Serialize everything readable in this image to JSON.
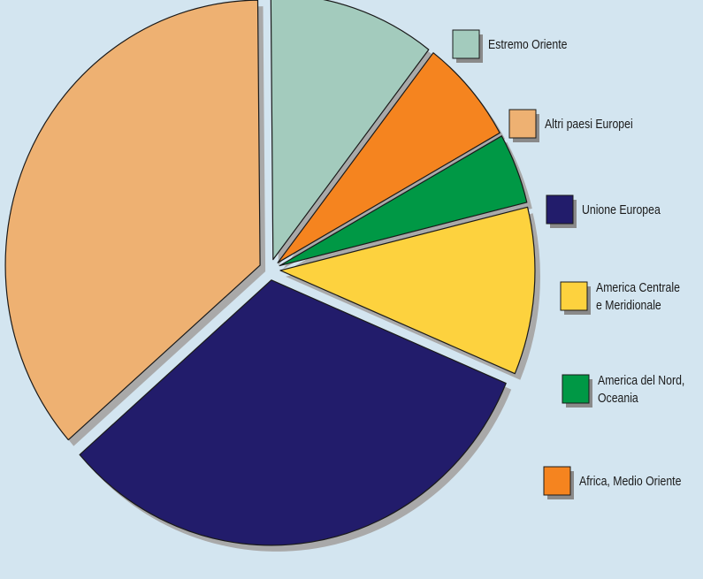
{
  "chart_data": {
    "type": "pie",
    "exploded": true,
    "shadow": true,
    "slices": [
      {
        "label": "Estremo Oriente",
        "lines": [
          "Estremo Oriente"
        ],
        "value": 10.6,
        "color": "#a3cbbd"
      },
      {
        "label": "Africa, Medio Oriente",
        "lines": [
          "Africa, Medio Oriente"
        ],
        "value": 6.4,
        "color": "#f5841f"
      },
      {
        "label": "America del Nord, Oceania",
        "lines": [
          "America del Nord,",
          "Oceania"
        ],
        "value": 4.3,
        "color": "#009845"
      },
      {
        "label": "America Centrale e Meridionale",
        "lines": [
          "America Centrale",
          "e Meridionale"
        ],
        "value": 10.2,
        "color": "#fdd23e"
      },
      {
        "label": "Unione Europea",
        "lines": [
          "Unione Europea"
        ],
        "value": 32.2,
        "color": "#221c6b"
      },
      {
        "label": "Altri paesi Europei",
        "lines": [
          "Altri paesi Europei"
        ],
        "value": 36.3,
        "color": "#eeb172"
      }
    ],
    "legend": [
      {
        "key": "Estremo Oriente"
      },
      {
        "key": "Altri paesi Europei"
      },
      {
        "key": "Unione Europea"
      },
      {
        "key": "America Centrale e Meridionale"
      },
      {
        "key": "America del Nord, Oceania"
      },
      {
        "key": "Africa, Medio Oriente"
      }
    ],
    "legend_placement": "right"
  }
}
